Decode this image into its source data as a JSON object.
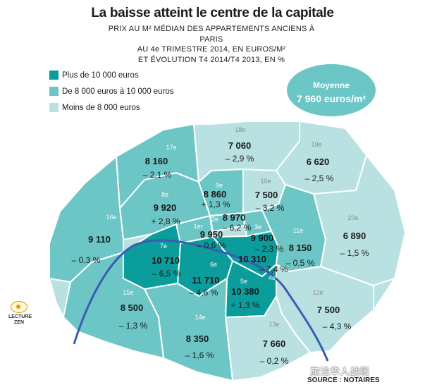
{
  "title": "La baisse atteint le centre de la capitale",
  "subtitle": [
    "PRIX AU M² MÉDIAN DES APPARTEMENTS ANCIENS À PARIS",
    "AU 4e TRIMESTRE 2014, EN EUROS/M²",
    "ET ÉVOLUTION T4 2014/T4 2013, EN %"
  ],
  "legend": [
    {
      "label": "Plus de 10 000 euros",
      "color": "#0b9c9c"
    },
    {
      "label": "De 8 000 euros à 10 000 euros",
      "color": "#6cc6c6"
    },
    {
      "label": "Moins de 8 000 euros",
      "color": "#b9e1e1"
    }
  ],
  "average": {
    "label": "Moyenne",
    "value": "7 960 euros/m²",
    "color": "#6cc6c6"
  },
  "arrondissements": [
    {
      "num": "1er",
      "price": "9 950",
      "evolution": "– 0,6 %",
      "tier": "mid"
    },
    {
      "num": "2e",
      "price": "8 970",
      "evolution": "– 6,2 %",
      "tier": "mid"
    },
    {
      "num": "3e",
      "price": "9 900",
      "evolution": "– 2,3 %",
      "tier": "mid"
    },
    {
      "num": "4e",
      "price": "10 310",
      "evolution": "– 7,4 %",
      "tier": "high"
    },
    {
      "num": "5e",
      "price": "10 380",
      "evolution": "+ 1,3 %",
      "tier": "high"
    },
    {
      "num": "6e",
      "price": "11 710",
      "evolution": "– 4,6 %",
      "tier": "high"
    },
    {
      "num": "7e",
      "price": "10 710",
      "evolution": "– 6,5 %",
      "tier": "high"
    },
    {
      "num": "8e",
      "price": "9 920",
      "evolution": "+ 2,8 %",
      "tier": "mid"
    },
    {
      "num": "9e",
      "price": "8 860",
      "evolution": "+ 1,3 %",
      "tier": "mid"
    },
    {
      "num": "10e",
      "price": "7 500",
      "evolution": "– 3,2 %",
      "tier": "low"
    },
    {
      "num": "11e",
      "price": "8 150",
      "evolution": "– 0,5 %",
      "tier": "mid"
    },
    {
      "num": "12e",
      "price": "7 500",
      "evolution": "– 4,3 %",
      "tier": "low"
    },
    {
      "num": "13e",
      "price": "7 660",
      "evolution": "– 0,2 %",
      "tier": "low"
    },
    {
      "num": "14e",
      "price": "8 350",
      "evolution": "– 1,6 %",
      "tier": "mid"
    },
    {
      "num": "15e",
      "price": "8 500",
      "evolution": "– 1,3 %",
      "tier": "mid"
    },
    {
      "num": "16e",
      "price": "9 110",
      "evolution": "– 0,3 %",
      "tier": "mid"
    },
    {
      "num": "17e",
      "price": "8 160",
      "evolution": "– 2,1 %",
      "tier": "mid"
    },
    {
      "num": "18e",
      "price": "7 060",
      "evolution": "– 2,9 %",
      "tier": "low"
    },
    {
      "num": "19e",
      "price": "6 620",
      "evolution": "– 2,5 %",
      "tier": "low"
    },
    {
      "num": "20e",
      "price": "6 890",
      "evolution": "– 1,5 %",
      "tier": "low"
    }
  ],
  "colors": {
    "high": "#0b9c9c",
    "mid": "#6cc6c6",
    "low": "#b9e1e1",
    "border": "#ffffff",
    "river": "#3d5bb0"
  },
  "badge": {
    "line1": "LECTURE",
    "line2": "ZEN"
  },
  "source": "SOURCE : NOTAIRES",
  "watermark": "旅法华人战报"
}
